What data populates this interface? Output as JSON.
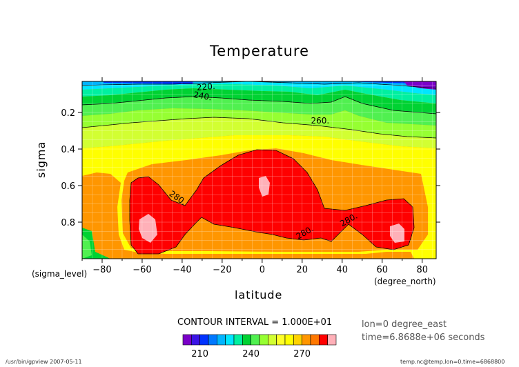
{
  "chart_data": {
    "type": "contour",
    "title": "Temperature",
    "xlabel": "latitude",
    "ylabel": "sigma",
    "x_unit_label": "(degree_north)",
    "y_unit_label": "(sigma_level)",
    "xlim": [
      -90,
      87
    ],
    "ylim": [
      1.0,
      0.03
    ],
    "x_ticks": [
      -80,
      -60,
      -40,
      -20,
      0,
      20,
      40,
      60,
      80
    ],
    "y_ticks": [
      0.2,
      0.4,
      0.6,
      0.8
    ],
    "x_tick_labels": [
      "−80",
      "−60",
      "−40",
      "−20",
      "0",
      "20",
      "40",
      "60",
      "80"
    ],
    "y_tick_labels": [
      "0.2",
      "0.4",
      "0.6",
      "0.8"
    ],
    "grid": true,
    "levels": [
      200,
      205,
      210,
      215,
      220,
      225,
      230,
      235,
      240,
      245,
      250,
      255,
      260,
      265,
      270,
      275,
      280,
      285
    ],
    "level_colors": [
      "#7a00c8",
      "#3a14e6",
      "#0032ff",
      "#0078ff",
      "#00b4ff",
      "#00e6ff",
      "#00f0a0",
      "#00d232",
      "#50f050",
      "#96ff32",
      "#d2ff32",
      "#ffff28",
      "#ffff00",
      "#ffd200",
      "#ff9600",
      "#ff7800",
      "#ff0000",
      "#ffb0b8"
    ],
    "contour_labels": [
      "220.",
      "240.",
      "260.",
      "280.",
      "280.",
      "280."
    ],
    "contour_interval_text": "CONTOUR INTERVAL = 1.000E+01",
    "colorbar_tick_labels": [
      "210",
      "240",
      "270"
    ],
    "colorbar_ticks": [
      210,
      240,
      270
    ],
    "info_lon": "lon=0 degree_east",
    "info_time": "time=6.8688e+06 seconds",
    "footer_left": "/usr/bin/gpview  2007-05-11",
    "footer_right": "temp.nc@temp,lon=0,time=6868800"
  }
}
